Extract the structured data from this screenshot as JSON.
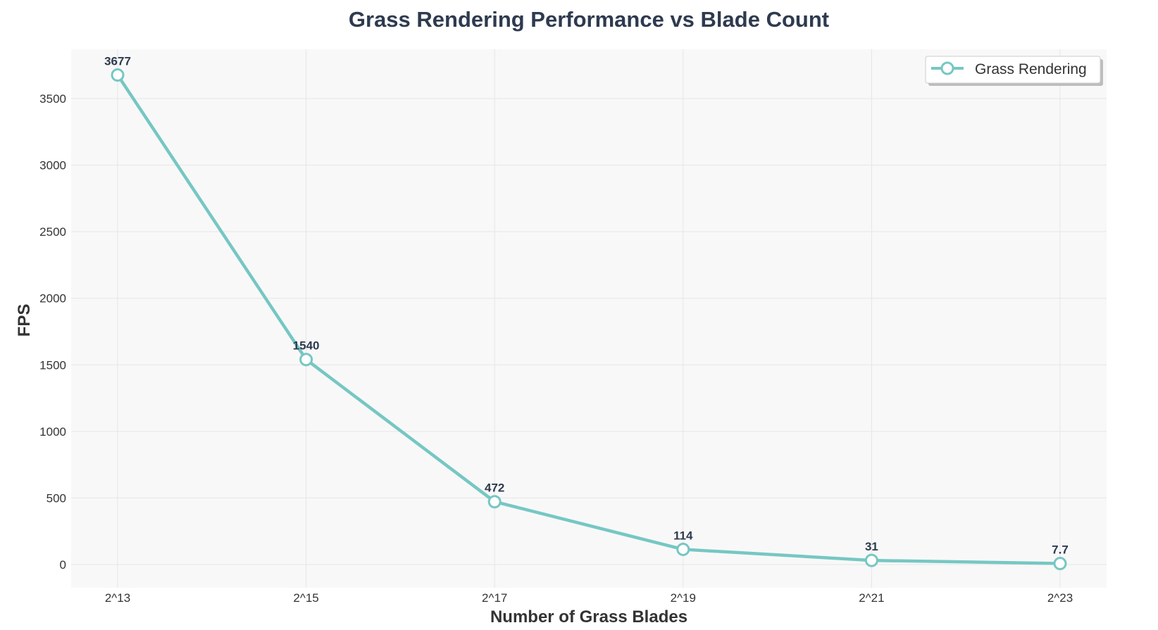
{
  "chart_data": {
    "type": "line",
    "title": "Grass Rendering Performance vs Blade Count",
    "xlabel": "Number of Grass Blades",
    "ylabel": "FPS",
    "categories": [
      "2^13",
      "2^15",
      "2^17",
      "2^19",
      "2^21",
      "2^23"
    ],
    "series": [
      {
        "name": "Grass Rendering",
        "values": [
          3677,
          1540,
          472,
          114,
          31,
          7.7
        ],
        "labels": [
          "3677",
          "1540",
          "472",
          "114",
          "31",
          "7.7"
        ],
        "color": "#76c7c3"
      }
    ],
    "yticks": [
      0,
      500,
      1000,
      1500,
      2000,
      2500,
      3000,
      3500
    ],
    "ylim": [
      -170,
      3860
    ],
    "grid": true,
    "legend_position": "top-right",
    "plot_background": "#f8f8f8",
    "grid_color": "#e6e6e6"
  }
}
